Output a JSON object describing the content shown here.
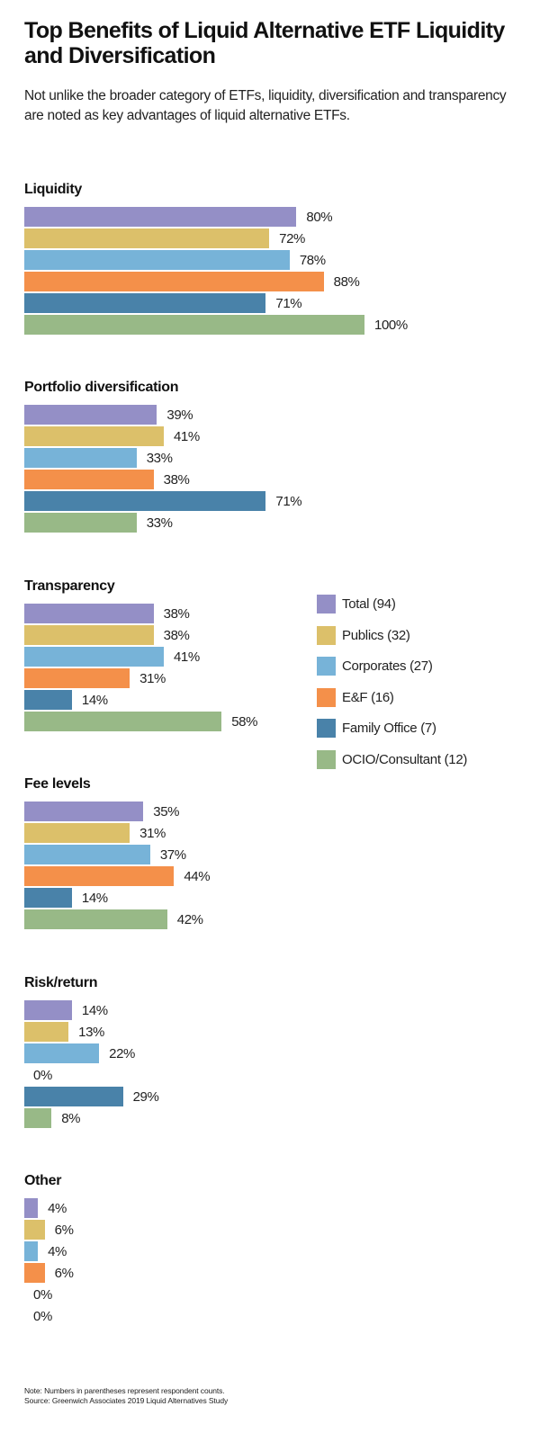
{
  "header": {
    "title": "Top Benefits of Liquid Alternative ETF Liquidity and Diversification",
    "subtitle": "Not unlike the broader category of ETFs, liquidity, diversification and transparency are noted as key advantages of liquid alternative ETFs."
  },
  "chart_data": {
    "type": "bar",
    "orientation": "horizontal",
    "title": "Top Benefits of Liquid Alternative ETF Liquidity and Diversification",
    "xlabel": "",
    "ylabel": "",
    "xlim": [
      0,
      100
    ],
    "grid": false,
    "legend_position": "right",
    "categories": [
      "Liquidity",
      "Portfolio diversification",
      "Transparency",
      "Fee levels",
      "Risk/return",
      "Other"
    ],
    "series": [
      {
        "name": "Total (94)",
        "color": "#948fc6",
        "values": [
          80,
          39,
          38,
          35,
          14,
          4
        ]
      },
      {
        "name": "Publics (32)",
        "color": "#dcc06a",
        "values": [
          72,
          41,
          38,
          31,
          13,
          6
        ]
      },
      {
        "name": "Corporates (27)",
        "color": "#77b3d8",
        "values": [
          78,
          33,
          41,
          37,
          22,
          4
        ]
      },
      {
        "name": "E&F (16)",
        "color": "#f4904a",
        "values": [
          88,
          38,
          31,
          44,
          0,
          6
        ]
      },
      {
        "name": "Family Office (7)",
        "color": "#4982a9",
        "values": [
          71,
          71,
          14,
          14,
          29,
          0
        ]
      },
      {
        "name": "OCIO/Consultant (12)",
        "color": "#98b987",
        "values": [
          100,
          33,
          58,
          42,
          8,
          0
        ]
      }
    ],
    "value_suffix": "%"
  },
  "footer": {
    "note": "Note: Numbers in parentheses represent respondent counts.",
    "source": "Source: Greenwich Associates 2019 Liquid Alternatives Study"
  }
}
